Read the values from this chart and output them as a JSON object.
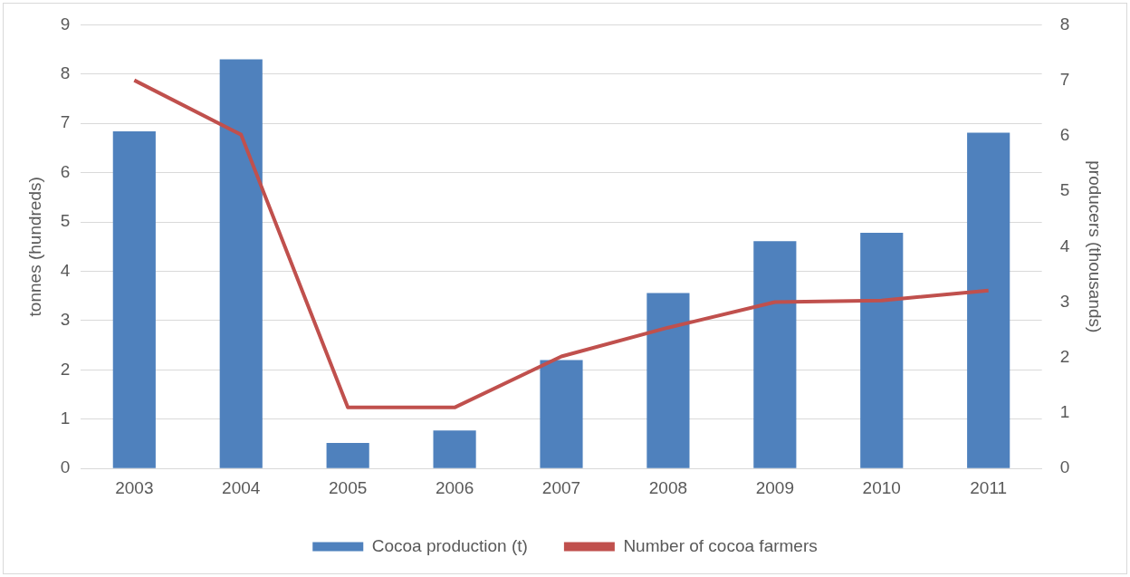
{
  "chart_data": {
    "type": "bar",
    "categories": [
      "2003",
      "2004",
      "2005",
      "2006",
      "2007",
      "2008",
      "2009",
      "2010",
      "2011"
    ],
    "ylabel": "tonnes (hundreds)",
    "y2label": "producers (thousands)",
    "ylim": [
      0,
      9
    ],
    "yticks": [
      0,
      1,
      2,
      3,
      4,
      5,
      6,
      7,
      8,
      9
    ],
    "y2lim": [
      0,
      8
    ],
    "y2ticks": [
      0,
      1,
      2,
      3,
      4,
      5,
      6,
      7,
      8
    ],
    "grid": "y",
    "legend": "bottom",
    "series": [
      {
        "name": "Cocoa production (t)",
        "color": "#4f81bd",
        "values": [
          6.84,
          8.3,
          0.52,
          0.77,
          2.2,
          3.56,
          4.61,
          4.78,
          6.81
        ]
      },
      {
        "name": "Number of cocoa farmers",
        "type": "line",
        "axis": "y2",
        "color": "#c0504d",
        "values": [
          7.0,
          6.02,
          1.1,
          1.1,
          2.02,
          2.54,
          3.0,
          3.03,
          3.21
        ]
      }
    ]
  }
}
